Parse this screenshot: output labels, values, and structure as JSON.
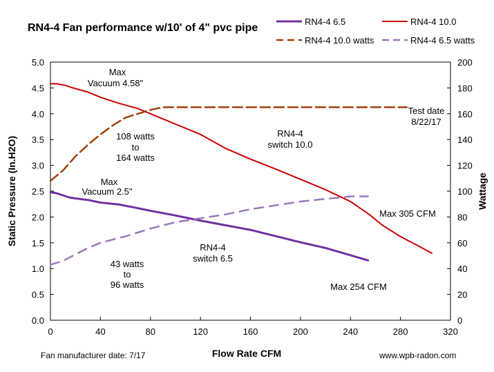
{
  "chart_data": {
    "type": "line",
    "title": "RN4-4 Fan performance w/10' of 4\" pvc pipe",
    "xlabel": "Flow Rate  CFM",
    "ylabel": "Static Pressure (In.H2O)",
    "y2label": "Wattage",
    "xlim": [
      0,
      320
    ],
    "ylim": [
      0,
      5
    ],
    "y2lim": [
      0,
      200
    ],
    "x_ticks": [
      "0",
      "40",
      "80",
      "120",
      "160",
      "200",
      "240",
      "280",
      "320"
    ],
    "y_ticks": [
      "0.0",
      "0.5",
      "1.0",
      "1.5",
      "2.0",
      "2.5",
      "3.0",
      "3.5",
      "4.0",
      "4.5",
      "5.0"
    ],
    "y2_ticks": [
      "0",
      "20",
      "40",
      "60",
      "80",
      "100",
      "120",
      "140",
      "160",
      "180",
      "200"
    ],
    "grid": false,
    "legend_position": "top-right",
    "series": [
      {
        "name": "RN4-4 6.5",
        "axis": "left",
        "color": "#7030a0",
        "style": "solid",
        "x": [
          0,
          5,
          10,
          15,
          20,
          30,
          40,
          55,
          70,
          80,
          100,
          120,
          140,
          160,
          180,
          200,
          220,
          240,
          254
        ],
        "y": [
          2.48,
          2.46,
          2.42,
          2.38,
          2.36,
          2.33,
          2.28,
          2.24,
          2.17,
          2.12,
          2.03,
          1.93,
          1.84,
          1.75,
          1.63,
          1.51,
          1.4,
          1.26,
          1.16
        ]
      },
      {
        "name": "RN4-4 10.0",
        "axis": "left",
        "color": "#cc0000",
        "style": "solid",
        "x": [
          0,
          5,
          12,
          18,
          30,
          40,
          55,
          70,
          80,
          100,
          120,
          140,
          160,
          180,
          200,
          220,
          240,
          255,
          265,
          280,
          295,
          305
        ],
        "y": [
          4.58,
          4.58,
          4.55,
          4.5,
          4.42,
          4.32,
          4.2,
          4.1,
          4.0,
          3.8,
          3.6,
          3.33,
          3.12,
          2.93,
          2.73,
          2.53,
          2.3,
          2.05,
          1.85,
          1.62,
          1.43,
          1.3
        ]
      },
      {
        "name": "RN4-4 10.0 watts",
        "axis": "right",
        "color": "#a0400a",
        "style": "dashed",
        "x": [
          0,
          10,
          20,
          30,
          40,
          50,
          60,
          70,
          80,
          90,
          100,
          140,
          200,
          280,
          285
        ],
        "y": [
          108,
          116,
          127,
          136,
          144,
          151,
          157,
          160,
          163,
          165,
          165,
          165,
          165,
          165,
          165
        ]
      },
      {
        "name": "RN4-4 6.5 watts",
        "axis": "right",
        "color": "#9b77bd",
        "style": "dashed",
        "x": [
          0,
          10,
          20,
          30,
          40,
          60,
          80,
          100,
          120,
          140,
          160,
          180,
          200,
          220,
          240,
          254
        ],
        "y": [
          43,
          46,
          51,
          56,
          60,
          65,
          71,
          76,
          79,
          82,
          86,
          89,
          92,
          94,
          96,
          96
        ]
      }
    ],
    "annotations": {
      "max_vacuum_10": [
        "Max",
        "Vacuum  4.58\""
      ],
      "watts_10": [
        "108 watts",
        "to",
        "164 watts"
      ],
      "switch_10": [
        "RN4-4",
        "switch 10.0"
      ],
      "test_date": [
        "Test date",
        "8/22/17"
      ],
      "max_vacuum_65": [
        "Max",
        "Vacuum  2.5\""
      ],
      "max_305": "Max 305 CFM",
      "switch_65": [
        "RN4-4",
        "switch 6.5"
      ],
      "watts_65": [
        "43 watts",
        "to",
        "96 watts"
      ],
      "max_254": "Max 254 CFM"
    },
    "footer": {
      "left": "Fan manufacturer date: 7/17",
      "right": "www.wpb-radon.com"
    }
  }
}
